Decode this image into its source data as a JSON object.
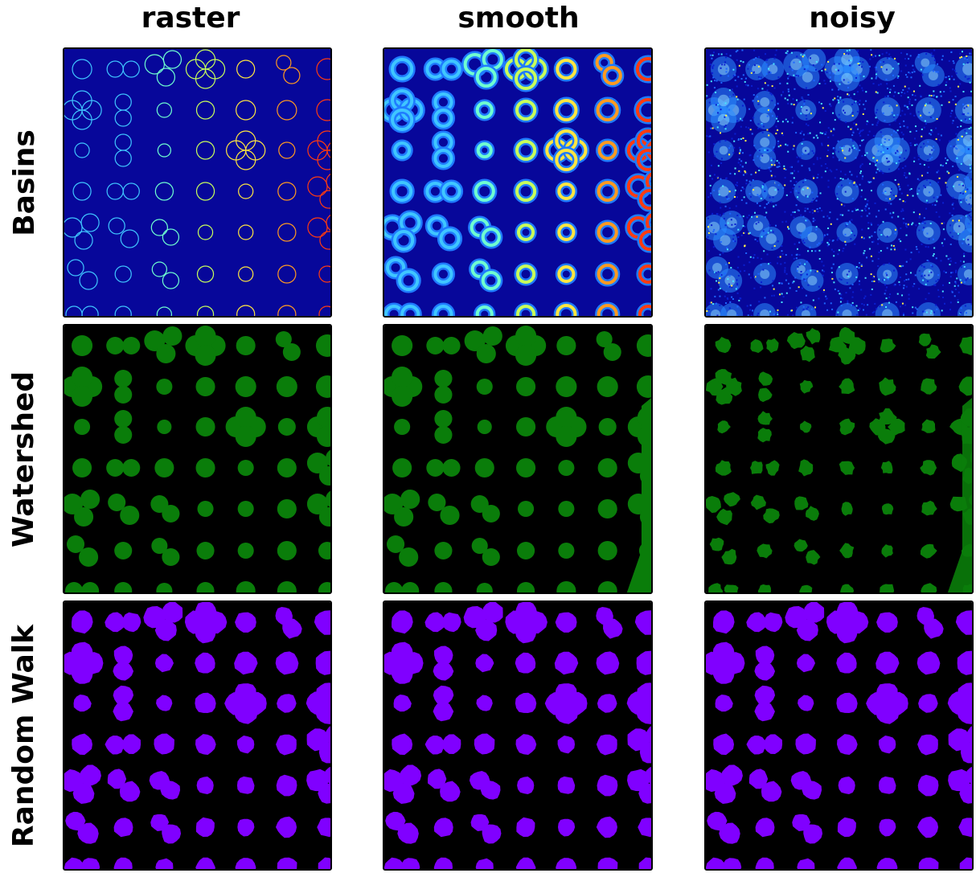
{
  "columns": [
    "raster",
    "smooth",
    "noisy"
  ],
  "rows": [
    "Basins",
    "Watershed",
    "Random Walk"
  ],
  "panel_kinds": {
    "basins_raster": "thin colored rings on deep blue background",
    "basins_smooth": "thick glowing rings on blue background",
    "basins_noisy": "speckled noise with soft bright blobs",
    "watershed": "green segmented blobs on black",
    "random_walk": "purple segmented blobs on black"
  },
  "colors": {
    "basin_background": "#07079a",
    "watershed_fill": "#0a7d0a",
    "random_walk_fill": "#8000ff",
    "segmentation_background": "#000000"
  }
}
